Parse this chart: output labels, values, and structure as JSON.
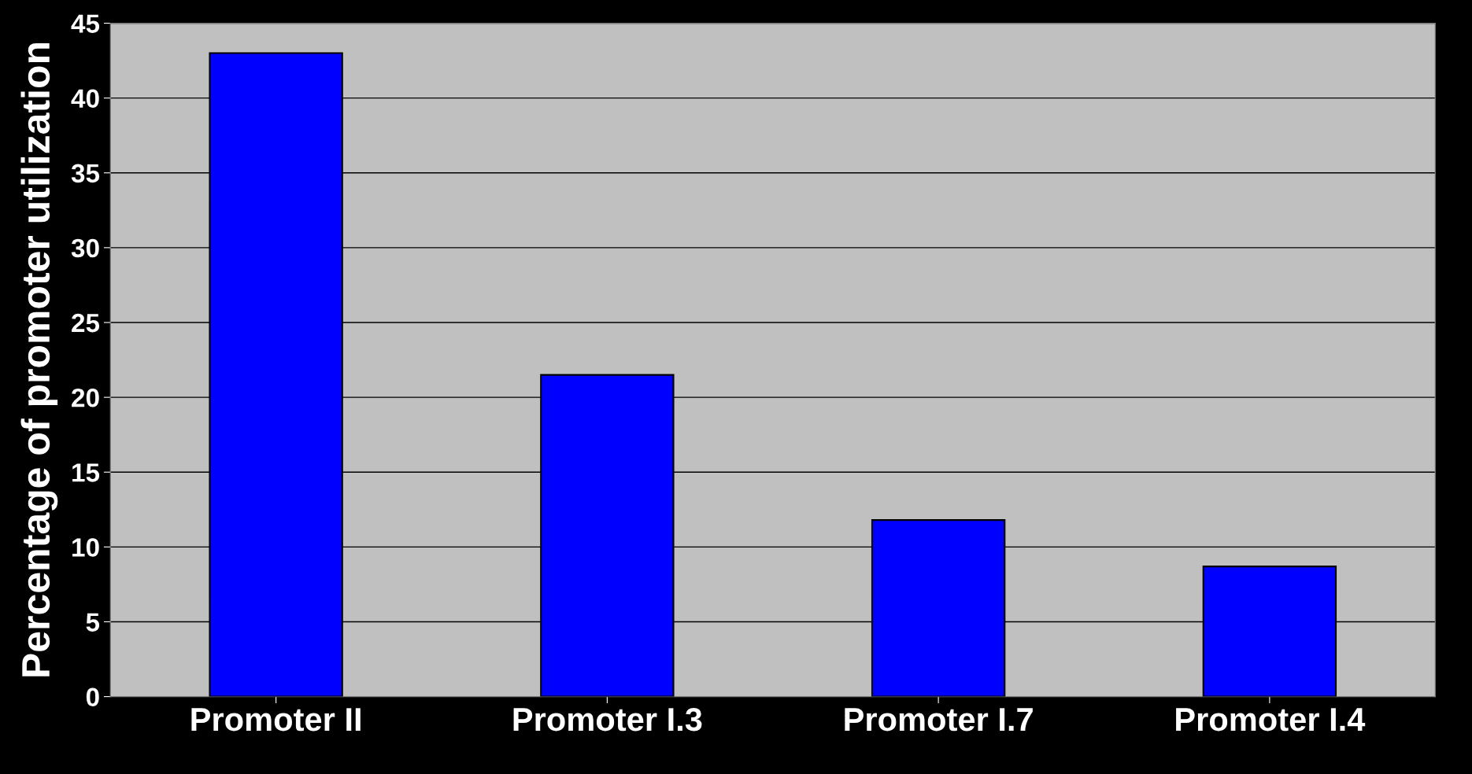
{
  "chart_data": {
    "type": "bar",
    "ylabel": "Percentage of promoter utilization",
    "categories": [
      "Promoter II",
      "Promoter I.3",
      "Promoter I.7",
      "Promoter I.4"
    ],
    "values": [
      43,
      21.5,
      11.8,
      8.7
    ],
    "color": "#0000ff",
    "ylim": [
      0,
      45
    ],
    "yticks": [
      0,
      5,
      10,
      15,
      20,
      25,
      30,
      35,
      40,
      45
    ],
    "grid": "y",
    "legend": false
  }
}
